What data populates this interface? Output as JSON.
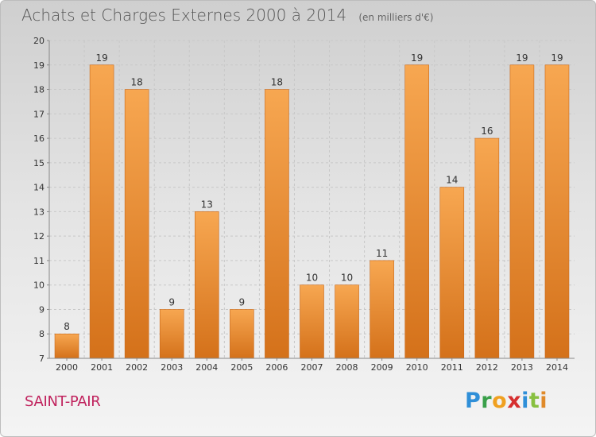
{
  "title": "Achats et Charges Externes 2000 à 2014",
  "subtitle": "(en milliers d'€)",
  "place": "SAINT-PAIR",
  "logo": "Proxiti",
  "colors": {
    "bar_light": "#f7a751",
    "bar_dark": "#d4711a",
    "grid": "#c8c8c8",
    "place": "#c0225d"
  },
  "chart_data": {
    "type": "bar",
    "categories": [
      "2000",
      "2001",
      "2002",
      "2003",
      "2004",
      "2005",
      "2006",
      "2007",
      "2008",
      "2009",
      "2010",
      "2011",
      "2012",
      "2013",
      "2014"
    ],
    "values": [
      8,
      19,
      18,
      9,
      13,
      9,
      18,
      10,
      10,
      11,
      19,
      14,
      16,
      19,
      19
    ],
    "ylim": [
      7,
      20
    ],
    "yticks": [
      7,
      8,
      9,
      10,
      11,
      12,
      13,
      14,
      15,
      16,
      17,
      18,
      19,
      20
    ],
    "grid": true,
    "data_labels": true
  }
}
